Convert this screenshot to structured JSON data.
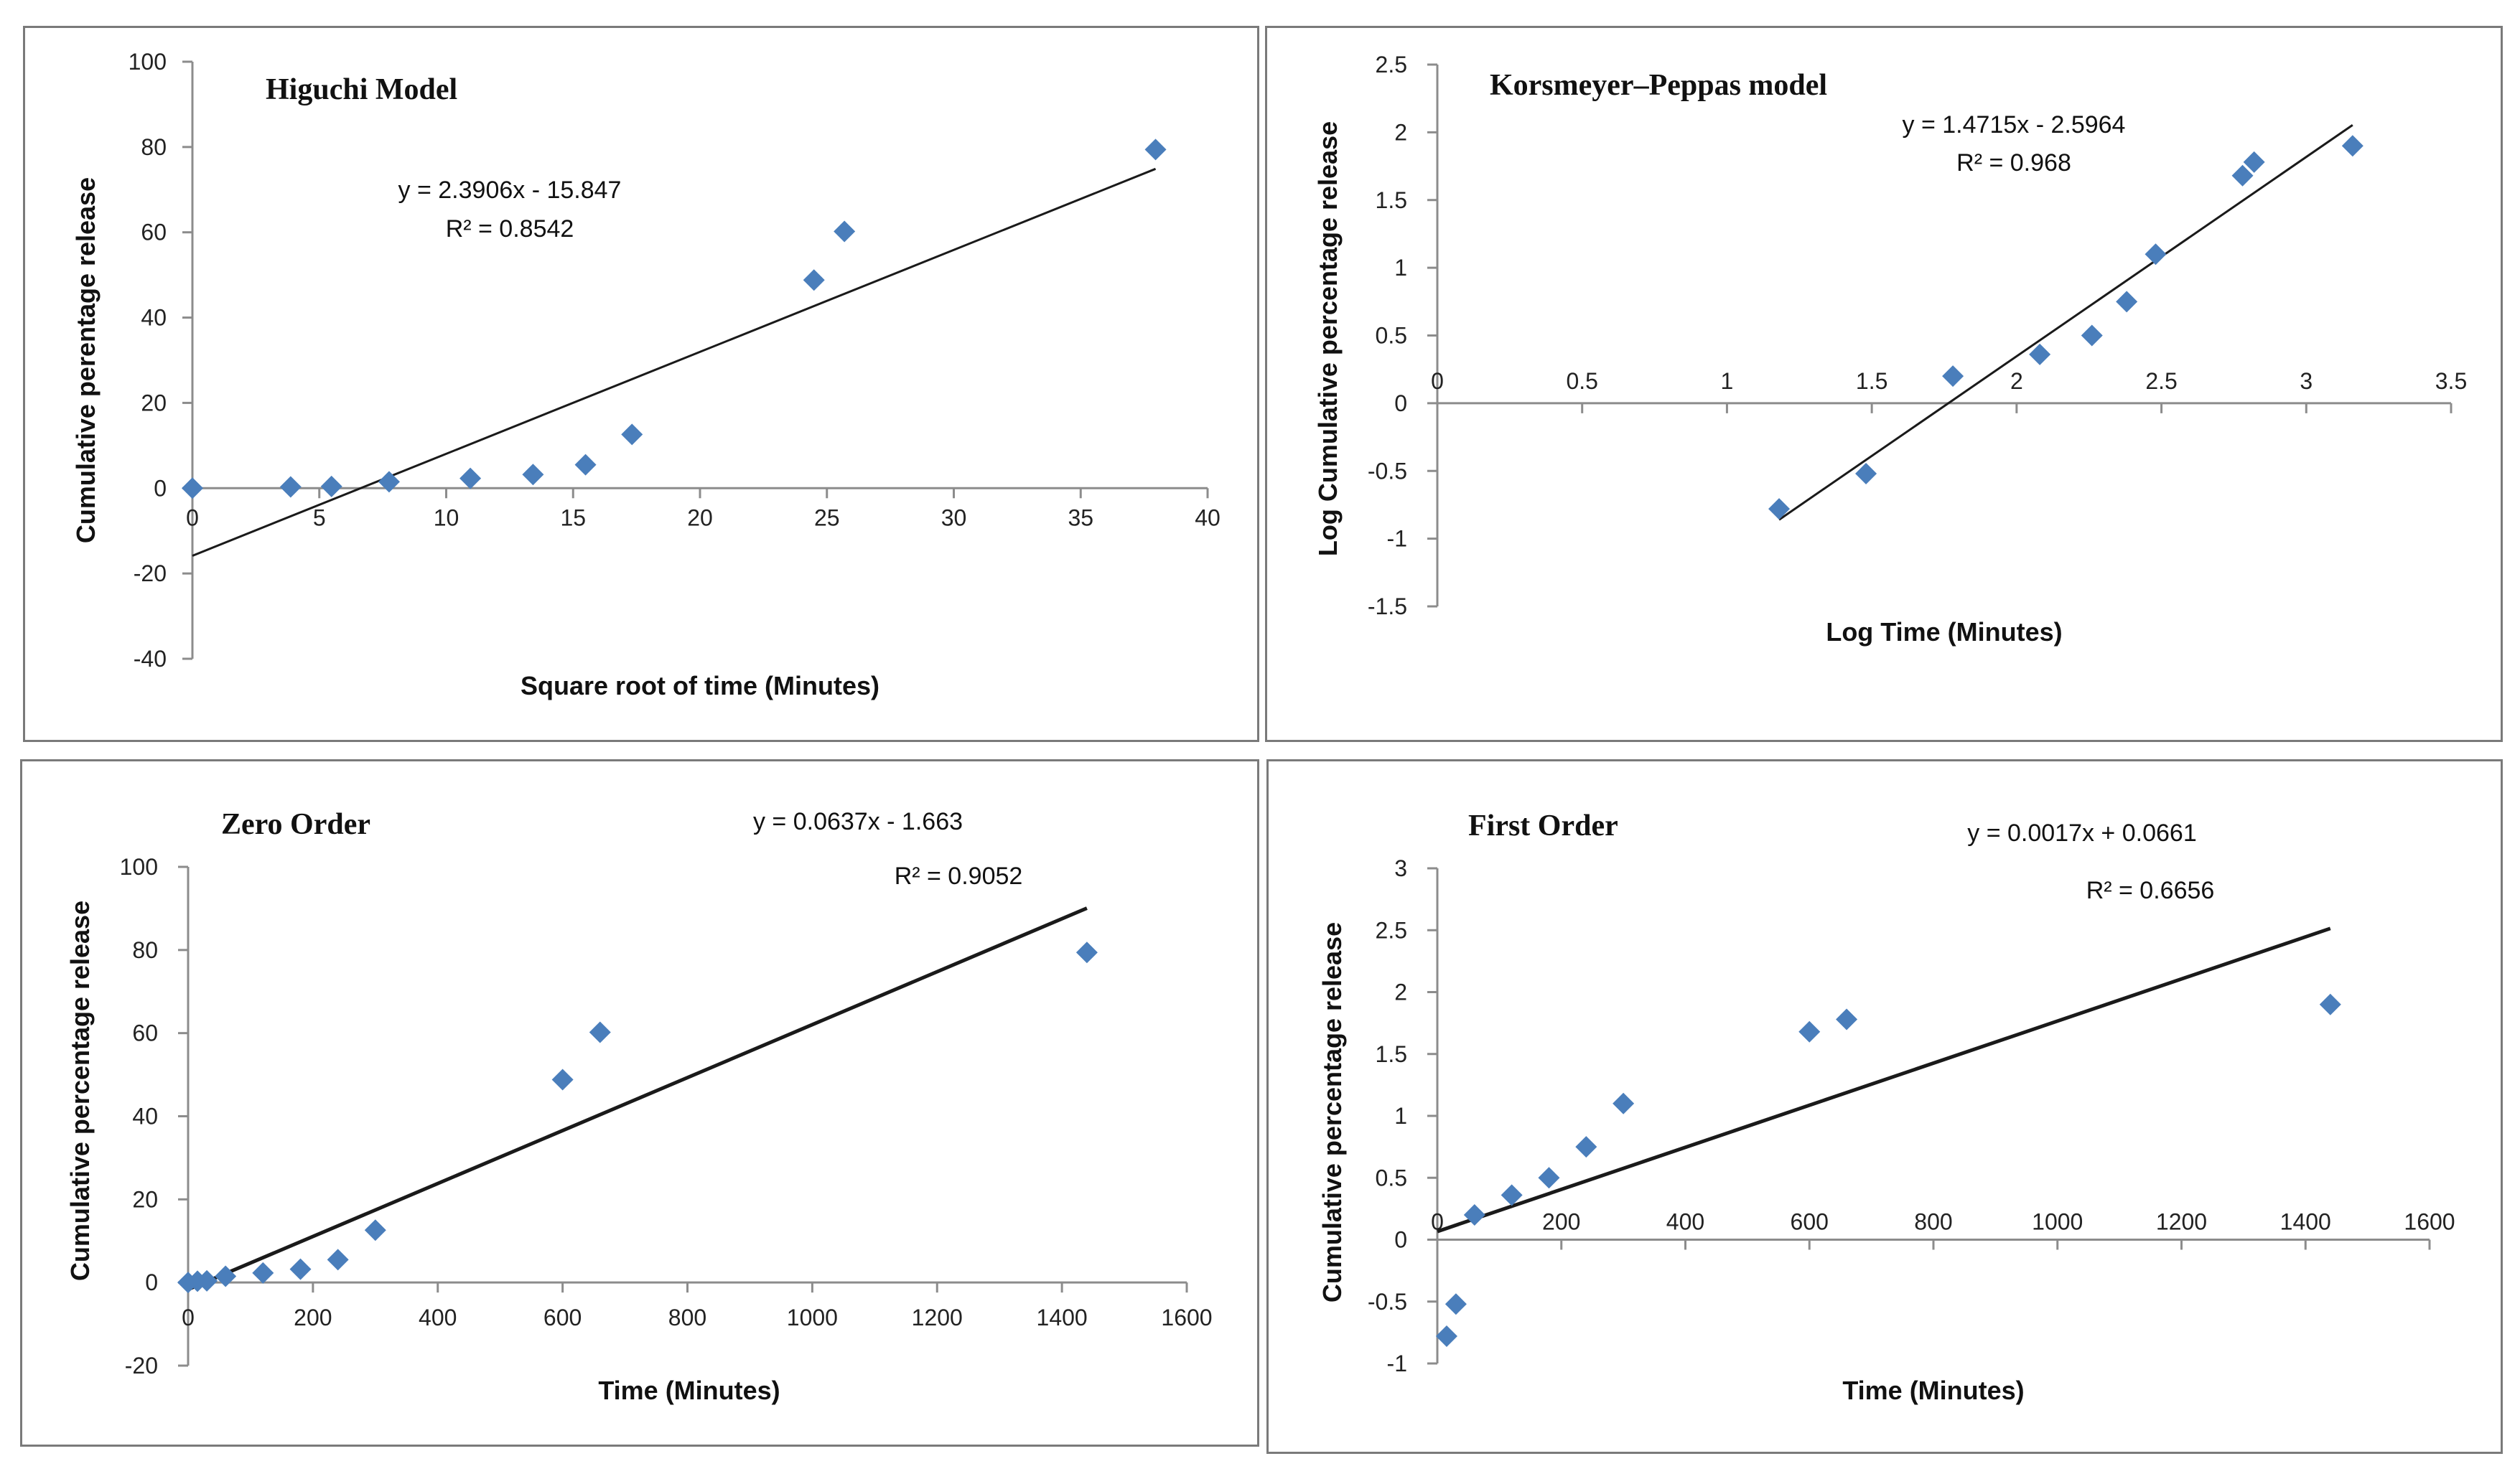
{
  "colors": {
    "marker": "#4a7ebb",
    "axis": "#8c8c8c",
    "trend": "#1a1a1a",
    "border": "#7a7a7a"
  },
  "chart_data": [
    {
      "id": "higuchi",
      "type": "scatter",
      "title": "Higuchi Model",
      "xlabel": "Square root of time (Minutes)",
      "ylabel": "Cumulative perentage release",
      "xlim": [
        0,
        40
      ],
      "ylim": [
        -40,
        100
      ],
      "xticks": [
        0,
        5,
        10,
        15,
        20,
        25,
        30,
        35,
        40
      ],
      "yticks": [
        -40,
        -20,
        0,
        20,
        40,
        60,
        80,
        100
      ],
      "x": [
        0,
        3.87,
        5.48,
        7.75,
        10.95,
        13.42,
        15.49,
        17.32,
        24.49,
        25.69,
        37.95
      ],
      "y": [
        0,
        0.3,
        0.4,
        1.5,
        2.3,
        3.2,
        5.5,
        12.6,
        48.8,
        60.2,
        79.4
      ],
      "trendline": {
        "slope": 2.3906,
        "intercept": -15.847,
        "x_range": [
          0,
          37.95
        ]
      },
      "equation": "y = 2.3906x - 15.847",
      "r2": "R² = 0.8542"
    },
    {
      "id": "korsmeyer",
      "type": "scatter",
      "title": "Korsmeyer–Peppas model",
      "xlabel": "Log Time (Minutes)",
      "ylabel": "Log Cumulative percentage release",
      "xlim": [
        0,
        3.5
      ],
      "ylim": [
        -1.5,
        2.5
      ],
      "xticks": [
        0,
        0.5,
        1,
        1.5,
        2,
        2.5,
        3,
        3.5
      ],
      "yticks": [
        -1.5,
        -1,
        -0.5,
        0,
        0.5,
        1,
        1.5,
        2,
        2.5
      ],
      "x": [
        1.18,
        1.48,
        1.78,
        2.08,
        2.26,
        2.38,
        2.48,
        2.78,
        2.82,
        3.16
      ],
      "y": [
        -0.78,
        -0.52,
        0.2,
        0.36,
        0.5,
        0.75,
        1.1,
        1.68,
        1.78,
        1.9
      ],
      "trendline": {
        "slope": 1.4715,
        "intercept": -2.5964,
        "x_range": [
          1.18,
          3.16
        ]
      },
      "equation": "y = 1.4715x - 2.5964",
      "r2": "R² = 0.968"
    },
    {
      "id": "zero",
      "type": "scatter",
      "title": "Zero Order",
      "xlabel": "Time (Minutes)",
      "ylabel": "Cumulative percentage release",
      "xlim": [
        0,
        1600
      ],
      "ylim": [
        -20,
        100
      ],
      "xticks": [
        0,
        200,
        400,
        600,
        800,
        1000,
        1200,
        1400,
        1600
      ],
      "yticks": [
        -20,
        0,
        20,
        40,
        60,
        80,
        100
      ],
      "x": [
        0,
        15,
        30,
        60,
        120,
        180,
        240,
        300,
        600,
        660,
        1440
      ],
      "y": [
        0,
        0.3,
        0.4,
        1.5,
        2.3,
        3.2,
        5.5,
        12.6,
        48.8,
        60.2,
        79.4
      ],
      "trendline": {
        "slope": 0.0637,
        "intercept": -1.663,
        "x_range": [
          0,
          1440
        ]
      },
      "equation": "y = 0.0637x - 1.663",
      "r2": "R² = 0.9052"
    },
    {
      "id": "first",
      "type": "scatter",
      "title": "First Order",
      "xlabel": "Time (Minutes)",
      "ylabel": "Cumulative percentage release",
      "xlim": [
        0,
        1600
      ],
      "ylim": [
        -1,
        3
      ],
      "xticks": [
        0,
        200,
        400,
        600,
        800,
        1000,
        1200,
        1400,
        1600
      ],
      "yticks": [
        -1,
        -0.5,
        0,
        0.5,
        1,
        1.5,
        2,
        2.5,
        3
      ],
      "x": [
        15,
        30,
        60,
        120,
        180,
        240,
        300,
        600,
        660,
        1440
      ],
      "y": [
        -0.78,
        -0.52,
        0.2,
        0.36,
        0.5,
        0.75,
        1.1,
        1.68,
        1.78,
        1.9
      ],
      "trendline": {
        "slope": 0.0017,
        "intercept": 0.0661,
        "x_range": [
          0,
          1440
        ]
      },
      "equation": "y = 0.0017x + 0.0661",
      "r2": "R² = 0.6656"
    }
  ]
}
